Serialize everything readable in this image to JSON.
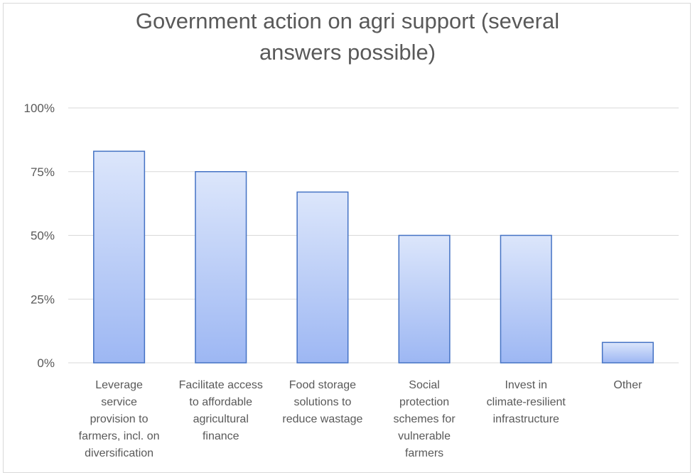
{
  "chart_data": {
    "type": "bar",
    "title": "Government action on agri support (several answers possible)",
    "title_lines": [
      "Government action on agri support (several",
      "answers possible)"
    ],
    "categories": [
      "Leverage service provision to farmers, incl. on diversification",
      "Facilitate access to affordable agricultural finance",
      "Food storage solutions to reduce wastage",
      "Social protection schemes for vulnerable farmers",
      "Invest in climate-resilient infrastructure",
      "Other"
    ],
    "category_lines": [
      [
        "Leverage",
        "service",
        "provision to",
        "farmers, incl. on",
        "diversification"
      ],
      [
        "Facilitate access",
        "to affordable",
        "agricultural",
        "finance"
      ],
      [
        "Food storage",
        "solutions to",
        "reduce wastage"
      ],
      [
        "Social",
        "protection",
        "schemes for",
        "vulnerable",
        "farmers"
      ],
      [
        "Invest in",
        "climate-resilient",
        "infrastructure"
      ],
      [
        "Other"
      ]
    ],
    "values": [
      0.83,
      0.75,
      0.67,
      0.5,
      0.5,
      0.08
    ],
    "yticks": [
      "0%",
      "25%",
      "50%",
      "75%",
      "100%"
    ],
    "ylim": [
      0,
      1
    ],
    "xlabel": "",
    "ylabel": "",
    "grid": true,
    "colors": {
      "bar_top": "#dce6fb",
      "bar_bottom": "#9db7f3",
      "bar_stroke": "#4472c4",
      "grid": "#d9d9d9",
      "text": "#595959"
    }
  }
}
